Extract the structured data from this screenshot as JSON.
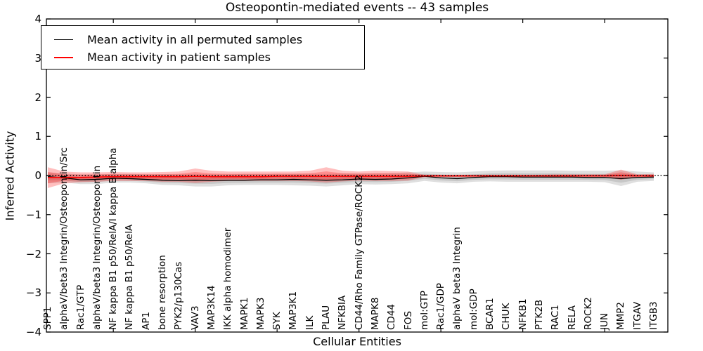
{
  "figure": {
    "title": "Osteopontin-mediated events -- 43 samples"
  },
  "chart_data": {
    "type": "line",
    "title": "Osteopontin-mediated events -- 43 samples",
    "xlabel": "Cellular Entities",
    "ylabel": "Inferred Activity",
    "ylim": [
      -4,
      4
    ],
    "grid": false,
    "legend_position": "upper-left",
    "ytick_values": [
      4,
      3,
      2,
      1,
      0,
      -1,
      -2,
      -3,
      -4
    ],
    "ytick_labels": [
      "4",
      "3",
      "2",
      "1",
      "0",
      "−1",
      "−2",
      "−3",
      "−4"
    ],
    "xtick_index_positions": [
      4,
      9,
      14,
      19,
      24,
      29,
      34
    ],
    "categories": [
      "SPP1",
      "alphaV/beta3 Integrin/Osteopontin/Src",
      "Rac1/GTP",
      "alphaV/beta3 Integrin/Osteopontin",
      "NF kappa B1 p50/RelA/I kappa B alpha",
      "NF kappa B1 p50/RelA",
      "AP1",
      "bone resorption",
      "PYK2/p130Cas",
      "VAV3",
      "MAP3K14",
      "IKK alpha homodimer",
      "MAPK1",
      "MAPK3",
      "SYK",
      "MAP3K1",
      "ILK",
      "PLAU",
      "NFKBIA",
      "CD44/Rho Family GTPase/ROCK2",
      "MAPK8",
      "CD44",
      "FOS",
      "mol:GTP",
      "Rac1/GDP",
      "alphaV beta3 Integrin",
      "mol:GDP",
      "BCAR1",
      "CHUK",
      "NFKB1",
      "PTK2B",
      "RAC1",
      "RELA",
      "ROCK2",
      "JUN",
      "MMP2",
      "ITGAV",
      "ITGB3"
    ],
    "series": [
      {
        "name": "Mean activity in all permuted samples",
        "color": "#000000",
        "line_width": 1.3,
        "values": [
          -0.03,
          -0.06,
          -0.11,
          -0.1,
          -0.07,
          -0.08,
          -0.1,
          -0.12,
          -0.13,
          -0.12,
          -0.13,
          -0.12,
          -0.12,
          -0.11,
          -0.11,
          -0.1,
          -0.11,
          -0.12,
          -0.11,
          -0.09,
          -0.1,
          -0.09,
          -0.06,
          -0.02,
          -0.06,
          -0.08,
          -0.05,
          -0.03,
          -0.03,
          -0.04,
          -0.04,
          -0.04,
          -0.04,
          -0.05,
          -0.05,
          -0.08,
          -0.05,
          -0.04
        ],
        "band": {
          "color": "#7f7f7f",
          "hi": [
            0.08,
            0.05,
            0.03,
            0.03,
            0.04,
            0.04,
            0.03,
            0.03,
            0.03,
            0.04,
            0.03,
            0.03,
            0.04,
            0.04,
            0.04,
            0.04,
            0.04,
            0.04,
            0.05,
            0.05,
            0.05,
            0.06,
            0.08,
            0.1,
            0.09,
            0.08,
            0.1,
            0.12,
            0.13,
            0.13,
            0.13,
            0.13,
            0.12,
            0.12,
            0.12,
            0.13,
            0.1,
            0.08
          ],
          "lo": [
            -0.2,
            -0.18,
            -0.22,
            -0.22,
            -0.18,
            -0.18,
            -0.2,
            -0.24,
            -0.25,
            -0.28,
            -0.28,
            -0.25,
            -0.24,
            -0.24,
            -0.24,
            -0.25,
            -0.26,
            -0.28,
            -0.25,
            -0.22,
            -0.23,
            -0.22,
            -0.2,
            -0.14,
            -0.18,
            -0.2,
            -0.16,
            -0.15,
            -0.16,
            -0.16,
            -0.16,
            -0.16,
            -0.16,
            -0.16,
            -0.17,
            -0.27,
            -0.16,
            -0.14
          ]
        }
      },
      {
        "name": "Mean activity in patient samples",
        "color": "#ff0000",
        "line_width": 1.6,
        "values": [
          -0.05,
          -0.05,
          -0.05,
          -0.04,
          -0.03,
          -0.03,
          -0.03,
          -0.03,
          -0.03,
          -0.02,
          -0.03,
          -0.03,
          -0.03,
          -0.03,
          -0.02,
          -0.02,
          -0.02,
          -0.02,
          -0.02,
          -0.02,
          -0.02,
          -0.02,
          -0.02,
          -0.01,
          -0.01,
          -0.01,
          -0.01,
          -0.01,
          -0.01,
          -0.01,
          -0.01,
          -0.01,
          -0.01,
          -0.01,
          -0.01,
          0.0,
          -0.01,
          -0.01
        ],
        "band": {
          "color": "#ff0000",
          "hi": [
            0.21,
            0.1,
            0.08,
            0.08,
            0.09,
            0.08,
            0.08,
            0.09,
            0.1,
            0.18,
            0.12,
            0.1,
            0.1,
            0.1,
            0.1,
            0.1,
            0.12,
            0.21,
            0.12,
            0.1,
            0.12,
            0.11,
            0.1,
            0.02,
            0.02,
            0.02,
            0.02,
            0.02,
            0.02,
            0.02,
            0.02,
            0.03,
            0.03,
            0.03,
            0.03,
            0.15,
            0.03,
            0.04
          ],
          "lo": [
            -0.32,
            -0.2,
            -0.17,
            -0.16,
            -0.14,
            -0.14,
            -0.14,
            -0.16,
            -0.16,
            -0.19,
            -0.16,
            -0.14,
            -0.14,
            -0.14,
            -0.14,
            -0.14,
            -0.15,
            -0.18,
            -0.15,
            -0.13,
            -0.14,
            -0.14,
            -0.13,
            -0.04,
            -0.04,
            -0.04,
            -0.04,
            -0.03,
            -0.03,
            -0.03,
            -0.03,
            -0.04,
            -0.04,
            -0.04,
            -0.04,
            -0.11,
            -0.04,
            -0.05
          ]
        }
      }
    ],
    "reference_line": {
      "y": 0,
      "style": "dotted",
      "color": "#000000"
    }
  }
}
